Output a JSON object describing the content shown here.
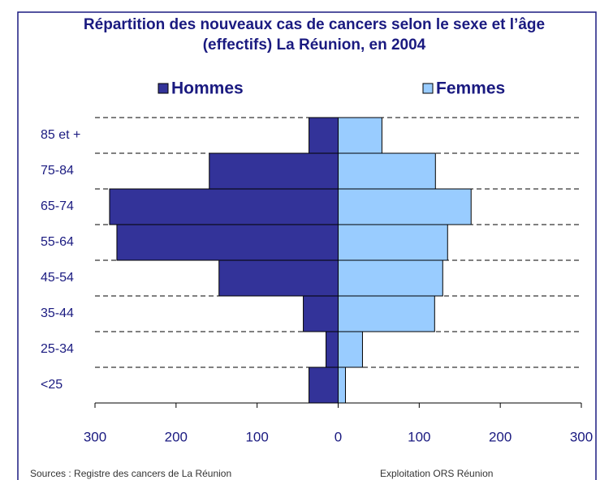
{
  "chart_data": {
    "type": "pyramid",
    "title": [
      "Répartition des nouveaux cas de cancers selon le sexe et l’âge",
      "(effectifs) La Réunion, en 2004"
    ],
    "categories": [
      "<25",
      "25-34",
      "35-44",
      "45-54",
      "55-64",
      "65-74",
      "75-84",
      "85 et +"
    ],
    "series": [
      {
        "name": "Hommes",
        "color": "#333399",
        "side": "left",
        "values": [
          36,
          15,
          43,
          147,
          273,
          282,
          159,
          36
        ]
      },
      {
        "name": "Femmes",
        "color": "#99ccff",
        "side": "right",
        "values": [
          9,
          30,
          119,
          129,
          135,
          164,
          120,
          54
        ]
      }
    ],
    "xlim": [
      -300,
      300
    ],
    "xticks": [
      {
        "value": -300,
        "label": "300"
      },
      {
        "value": -200,
        "label": "200"
      },
      {
        "value": -100,
        "label": "100"
      },
      0,
      100,
      200,
      300
    ],
    "notes": [
      "Sources : Registre des cancers de La Réunion",
      "Exploitation ORS Réunion"
    ]
  }
}
